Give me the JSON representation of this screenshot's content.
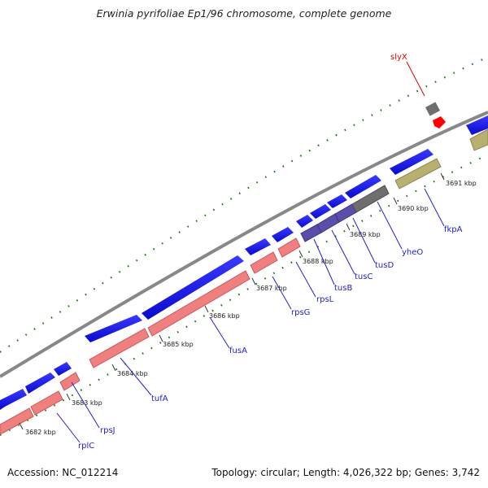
{
  "title": "Erwinia pyrifoliae Ep1/96 chromosome, complete genome",
  "accession": "Accession: NC_012214",
  "summary": "Topology: circular; Length: 4,026,322 bp; Genes: 3,742",
  "kbp_labels": [
    "3682 kbp",
    "3683 kbp",
    "3684 kbp",
    "3685 kbp",
    "3686 kbp",
    "3687 kbp",
    "3688 kbp",
    "3689 kbp",
    "3690 kbp",
    "3691 kbp"
  ],
  "gene_labels": [
    "rplC",
    "rpsJ",
    "tufA",
    "fusA",
    "rpsG",
    "rpsL",
    "tusB",
    "tusC",
    "tusD",
    "yheO",
    "fkpA",
    "slyX"
  ],
  "colors": {
    "backbone": "#888888",
    "forward_genes": "#1a1aee",
    "cds_pink": "#f08080",
    "cds_purple": "#5a4fa8",
    "cds_gray": "#6e6e6e",
    "cds_olive": "#b8b070",
    "gc_ticks": "#1a7a1a",
    "label_blue": "#2222cc",
    "label_red": "#dd0000"
  }
}
